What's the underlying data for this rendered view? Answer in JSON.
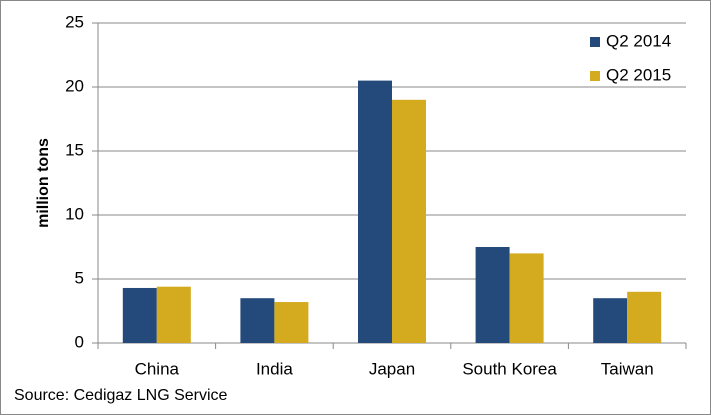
{
  "chart_data": {
    "type": "bar",
    "categories": [
      "China",
      "India",
      "Japan",
      "South Korea",
      "Taiwan"
    ],
    "series": [
      {
        "name": "Q2 2014",
        "color": "#244a7c",
        "values": [
          4.3,
          3.5,
          20.5,
          7.5,
          3.5
        ]
      },
      {
        "name": "Q2 2015",
        "color": "#d4aa1e",
        "values": [
          4.4,
          3.2,
          19.0,
          7.0,
          4.0
        ]
      }
    ],
    "ylabel": "million tons",
    "ylim": [
      0,
      25
    ],
    "yticks": [
      0,
      5,
      10,
      15,
      20,
      25
    ],
    "grid": true,
    "legend": "top-right",
    "source": "Source: Cedigaz LNG Service"
  }
}
